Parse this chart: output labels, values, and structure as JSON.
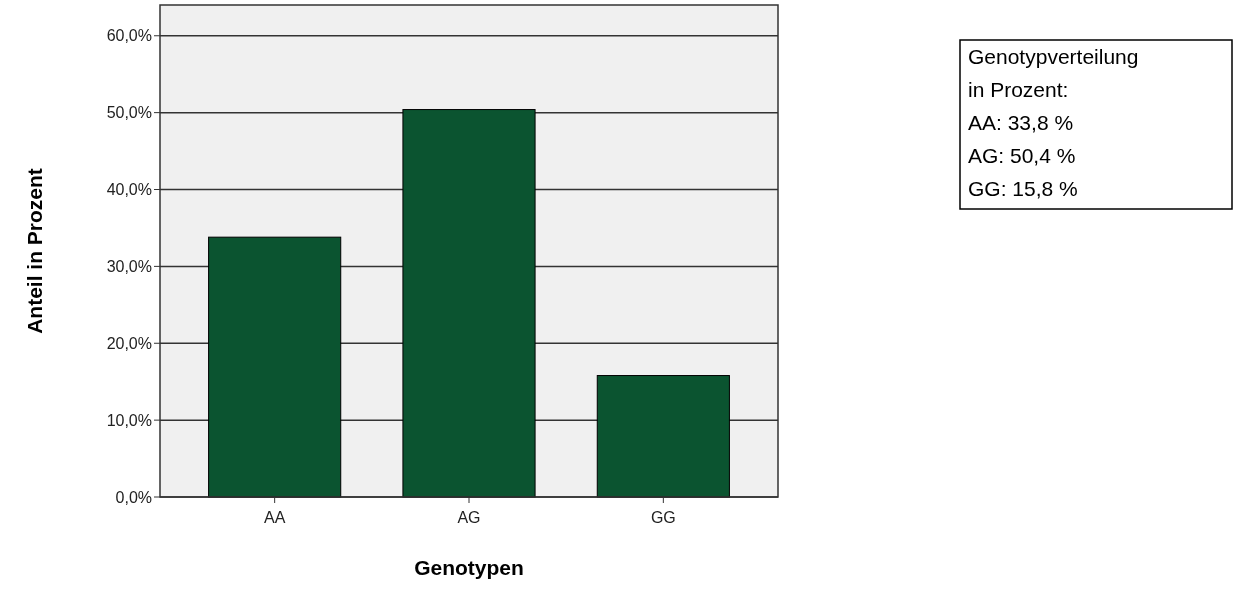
{
  "chart_data": {
    "type": "bar",
    "xlabel": "Genotypen",
    "ylabel": "Anteil in Prozent",
    "categories": [
      "AA",
      "AG",
      "GG"
    ],
    "values": [
      33.8,
      50.4,
      15.8
    ],
    "color": "#0b5430",
    "ylim": [
      0,
      64
    ],
    "yticks": [
      {
        "value": 0,
        "label": "0,0%"
      },
      {
        "value": 10,
        "label": "10,0%"
      },
      {
        "value": 20,
        "label": "20,0%"
      },
      {
        "value": 30,
        "label": "30,0%"
      },
      {
        "value": 40,
        "label": "40,0%"
      },
      {
        "value": 50,
        "label": "50,0%"
      },
      {
        "value": 60,
        "label": "60,0%"
      }
    ],
    "grid": "y",
    "annotations": [
      "Genotypverteilung",
      "in Prozent:",
      "AA: 33,8 %",
      "AG: 50,4 %",
      "GG: 15,8 %"
    ]
  }
}
